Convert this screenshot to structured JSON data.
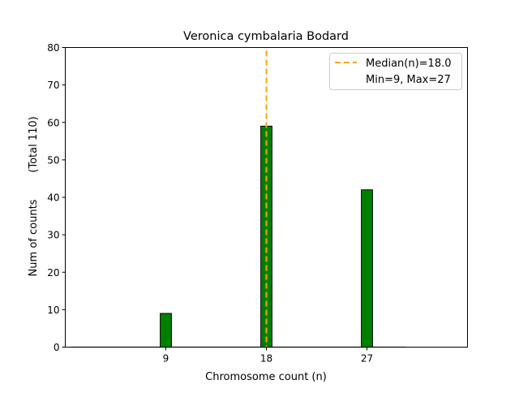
{
  "chart_data": {
    "type": "bar",
    "title": "Veronica cymbalaria Bodard",
    "xlabel": "Chromosome count (n)",
    "ylabel": "Num of counts",
    "ylabel2": "(Total 110)",
    "categories": [
      9,
      18,
      27
    ],
    "values": [
      9,
      59,
      42
    ],
    "bin_range": [
      0.5,
      30.5
    ],
    "bar_width": 1,
    "xlim": [
      0,
      36
    ],
    "ylim": [
      0,
      80
    ],
    "xticks": [
      9,
      18,
      27
    ],
    "xtick_labels": [
      "9",
      "18",
      "27"
    ],
    "yticks": [
      0,
      10,
      20,
      30,
      40,
      50,
      60,
      70,
      80
    ],
    "ytick_labels": [
      "0",
      "10",
      "20",
      "30",
      "40",
      "50",
      "60",
      "70",
      "80"
    ],
    "median": 18.0,
    "grid": false,
    "legend_position": "top-right",
    "legend": [
      "Median(n)=18.0",
      "Min=9, Max=27"
    ],
    "colors": {
      "bar": "#008000",
      "edge": "#000000",
      "median": "#FFA500"
    }
  }
}
